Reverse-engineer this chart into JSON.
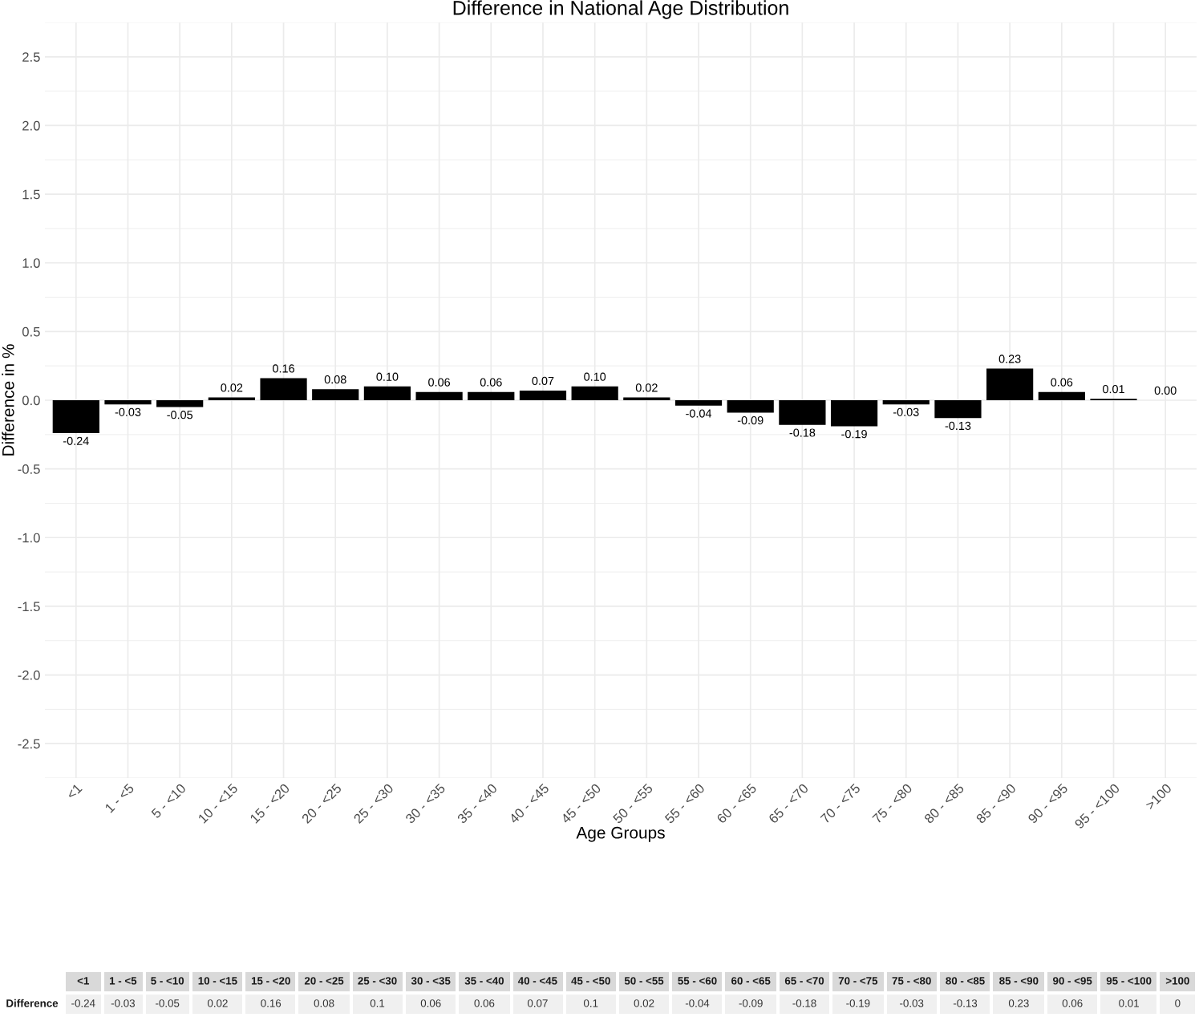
{
  "chart_data": [
    {
      "type": "bar",
      "title": "Difference in National Age Distribution",
      "xlabel": "Age Groups",
      "ylabel": "Difference in %",
      "categories": [
        "<1",
        "1 - <5",
        "5 - <10",
        "10 - <15",
        "15 - <20",
        "20 - <25",
        "25 - <30",
        "30 - <35",
        "35 - <40",
        "40 - <45",
        "45 - <50",
        "50 - <55",
        "55 - <60",
        "60 - <65",
        "65 - <70",
        "70 - <75",
        "75 - <80",
        "80 - <85",
        "85 - <90",
        "90 - <95",
        "95 - <100",
        ">100"
      ],
      "series": [
        {
          "color": "#000000",
          "values": [
            -0.24,
            -0.03,
            -0.05,
            0.02,
            0.16,
            0.08,
            0.1,
            0.06,
            0.06,
            0.07,
            0.1,
            0.02,
            -0.04,
            -0.09,
            -0.18,
            -0.19,
            -0.03,
            -0.13,
            0.23,
            0.06,
            0.01,
            0
          ],
          "value_labels": [
            "-0.24",
            "-0.03",
            "-0.05",
            "0.02",
            "0.16",
            "0.08",
            "0.10",
            "0.06",
            "0.06",
            "0.07",
            "0.10",
            "0.02",
            "-0.04",
            "-0.09",
            "-0.18",
            "-0.19",
            "-0.03",
            "-0.13",
            "0.23",
            "0.06",
            "0.01",
            "0.00"
          ]
        }
      ],
      "ylim": [
        -2.75,
        2.75
      ],
      "yticks": [
        -2.5,
        {
          "value": -2,
          "label": "-2.0"
        },
        -1.5,
        {
          "value": -1,
          "label": "-1.0"
        },
        -0.5,
        {
          "value": 0,
          "label": "0.0"
        },
        0.5,
        {
          "value": 1,
          "label": "1.0"
        },
        1.5,
        {
          "value": 2,
          "label": "2.0"
        },
        2.5
      ],
      "grid": true
    },
    {
      "type": "other",
      "categories": [
        "<1",
        "1 - <5",
        "5 - <10",
        "10 - <15",
        "15 - <20",
        "20 - <25",
        "25 - <30",
        "30 - <35",
        "35 - <40",
        "40 - <45",
        "45 - <50",
        "50 - <55",
        "55 - <60",
        "60 - <65",
        "65 - <70",
        "70 - <75",
        "75 - <80",
        "80 - <85",
        "85 - <90",
        "90 - <95",
        "95 - <100",
        ">100"
      ],
      "series": [
        {
          "name": "Difference",
          "values": [
            -0.24,
            -0.03,
            -0.05,
            0.02,
            0.16,
            0.08,
            0.1,
            0.06,
            0.06,
            0.07,
            0.1,
            0.02,
            -0.04,
            -0.09,
            -0.18,
            -0.19,
            -0.03,
            -0.13,
            0.23,
            0.06,
            0.01,
            0
          ]
        }
      ],
      "data_labels": true
    }
  ]
}
